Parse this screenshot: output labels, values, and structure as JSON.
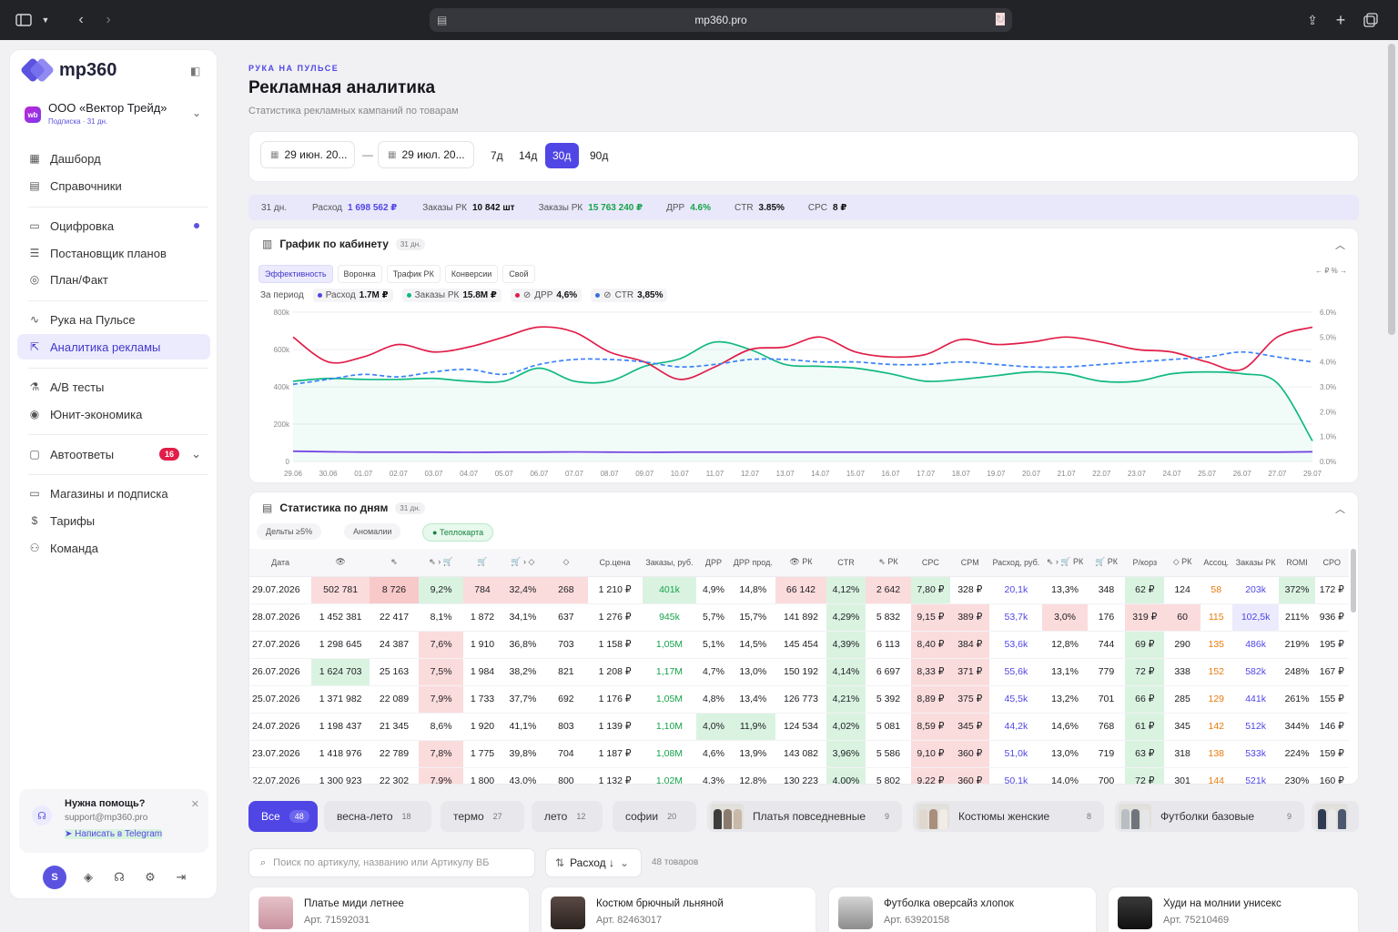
{
  "browser": {
    "url": "mp360.pro"
  },
  "sidebar": {
    "logo": "mp360",
    "org": {
      "name": "ООО «Вектор Трейд»",
      "sub": "Подписка · 31 дн.",
      "badge": "wb"
    },
    "items": [
      {
        "label": "Дашборд",
        "icon": "grid-icon"
      },
      {
        "label": "Справочники",
        "icon": "book-icon"
      },
      {
        "label": "Оцифровка",
        "icon": "folder-icon"
      },
      {
        "label": "Постановщик планов",
        "icon": "list-icon"
      },
      {
        "label": "План/Факт",
        "icon": "target-icon"
      },
      {
        "label": "Рука на Пульсе",
        "icon": "pulse-icon"
      },
      {
        "label": "Аналитика рекламы",
        "icon": "cursor-icon"
      },
      {
        "label": "A/B тесты",
        "icon": "flask-icon"
      },
      {
        "label": "Юнит-экономика",
        "icon": "coins-icon"
      },
      {
        "label": "Автоответы",
        "icon": "chat-icon",
        "badge": "16"
      },
      {
        "label": "Магазины и подписка",
        "icon": "card-icon"
      },
      {
        "label": "Тарифы",
        "icon": "dollar-icon"
      },
      {
        "label": "Команда",
        "icon": "team-icon"
      }
    ],
    "help": {
      "title": "Нужна помощь?",
      "email": "support@mp360.pro",
      "link": "Написать в Telegram"
    },
    "avatar": "S"
  },
  "header": {
    "eyebrow": "РУКА НА ПУЛЬСЕ",
    "title": "Рекламная аналитика",
    "subtitle": "Статистика рекламных кампаний по товарам"
  },
  "filters": {
    "date_from": "29 июн. 20...",
    "date_to": "29 июл. 20...",
    "dash": "—",
    "periods": [
      "7д",
      "14д",
      "30д",
      "90д"
    ],
    "active_period": "30д"
  },
  "kpi": {
    "days": "31 дн.",
    "spend_label": "Расход",
    "spend": "1 698 562 ₽",
    "orders_label": "Заказы РК",
    "orders": "10 842 шт",
    "orders_rub_label": "Заказы РК",
    "orders_rub": "15 763 240 ₽",
    "drr_label": "ДРР",
    "drr": "4.6%",
    "ctr_label": "CTR",
    "ctr": "3.85%",
    "cpc_label": "CPC",
    "cpc": "8 ₽"
  },
  "chart_section": {
    "title": "График по кабинету",
    "pill": "31 дн.",
    "tabs": [
      "Эффективность",
      "Воронка",
      "Трафик РК",
      "Конверсии",
      "Свой"
    ],
    "right_label": "← ₽  % →",
    "legend_prefix": "За период",
    "legend": [
      {
        "name": "Расход",
        "value": "1.7M ₽",
        "color": "#4f46e5"
      },
      {
        "name": "Заказы РК",
        "value": "15.8M ₽",
        "color": "#10b981"
      },
      {
        "name": "ДРР",
        "value": "4,6%",
        "color": "#e11d48"
      },
      {
        "name": "CTR",
        "value": "3,85%",
        "color": "#3b6fd8"
      }
    ]
  },
  "chart_data": {
    "type": "line",
    "x": [
      "29.06",
      "30.06",
      "01.07",
      "02.07",
      "03.07",
      "04.07",
      "05.07",
      "06.07",
      "07.07",
      "08.07",
      "09.07",
      "10.07",
      "11.07",
      "12.07",
      "13.07",
      "14.07",
      "15.07",
      "16.07",
      "17.07",
      "18.07",
      "19.07",
      "20.07",
      "21.07",
      "22.07",
      "23.07",
      "24.07",
      "25.07",
      "26.07",
      "27.07",
      "29.07"
    ],
    "y_left_ticks": [
      "0",
      "200k",
      "400k",
      "600k",
      "800k"
    ],
    "y_right_ticks": [
      "0.0%",
      "1.0%",
      "2.0%",
      "3.0%",
      "4.0%",
      "5.0%",
      "6.0%"
    ],
    "ylim_left": [
      0,
      800000
    ],
    "ylim_right": [
      0,
      6
    ],
    "series": [
      {
        "name": "Расход",
        "axis": "left",
        "color": "#6d3fe0",
        "values": [
          55000,
          52000,
          50000,
          50000,
          50000,
          49000,
          50000,
          50000,
          51000,
          50000,
          49000,
          50000,
          50000,
          50000,
          50000,
          50000,
          50000,
          50000,
          50000,
          50000,
          50000,
          50000,
          50000,
          50000,
          50000,
          50000,
          50000,
          50000,
          50000,
          52000
        ]
      },
      {
        "name": "Заказы РК",
        "axis": "left",
        "color": "#10b981",
        "values": [
          430000,
          445000,
          440000,
          440000,
          445000,
          430000,
          430000,
          500000,
          430000,
          430000,
          510000,
          550000,
          640000,
          600000,
          520000,
          510000,
          500000,
          470000,
          430000,
          440000,
          460000,
          480000,
          470000,
          430000,
          430000,
          470000,
          480000,
          470000,
          420000,
          110000
        ]
      },
      {
        "name": "ДРР",
        "axis": "right",
        "color": "#e11d48",
        "values": [
          5.0,
          4.0,
          4.2,
          4.7,
          4.4,
          4.6,
          5.0,
          5.4,
          5.2,
          4.4,
          4.0,
          3.3,
          3.8,
          4.5,
          4.6,
          5.0,
          4.4,
          4.2,
          4.3,
          4.9,
          4.7,
          4.8,
          5.0,
          4.8,
          4.5,
          4.4,
          4.0,
          3.7,
          5.0,
          5.4
        ]
      },
      {
        "name": "CTR",
        "axis": "right",
        "color": "#3b82f6",
        "values": [
          3.1,
          3.3,
          3.5,
          3.4,
          3.6,
          3.7,
          3.5,
          3.9,
          4.1,
          4.1,
          4.0,
          3.8,
          3.9,
          4.1,
          4.1,
          4.0,
          4.0,
          3.9,
          3.9,
          4.0,
          3.9,
          3.8,
          3.8,
          3.9,
          4.0,
          4.1,
          4.2,
          4.4,
          4.2,
          4.0
        ]
      }
    ]
  },
  "stats_section": {
    "title": "Статистика по дням",
    "pill": "31 дн.",
    "chips": [
      "Дельты ≥5%",
      "Аномалии",
      "Теплокарта"
    ],
    "columns": [
      "Дата",
      "👁",
      "⇖",
      "⇖ › 🛒",
      "🛒",
      "🛒 › ◇",
      "◇",
      "Ср.цена",
      "Заказы, руб.",
      "ДРР",
      "ДРР прод.",
      "👁 РК",
      "CTR",
      "⇖ РК",
      "CPC",
      "CPM",
      "Расход, руб.",
      "⇖ › 🛒 РК",
      "🛒 РК",
      "Р/корз",
      "◇ РК",
      "Ассоц.",
      "Заказы РК",
      "ROMI",
      "CPO"
    ],
    "rows": [
      [
        "29.07.2026",
        "502 781",
        "8 726",
        "9,2%",
        "784",
        "32,4%",
        "268",
        "1 210 ₽",
        "401k",
        "4,9%",
        "14,8%",
        "66 142",
        "4,12%",
        "2 642",
        "7,80 ₽",
        "328 ₽",
        "20,1k",
        "13,3%",
        "348",
        "62 ₽",
        "124",
        "58",
        "203k",
        "372%",
        "172 ₽"
      ],
      [
        "28.07.2026",
        "1 452 381",
        "22 417",
        "8,1%",
        "1 872",
        "34,1%",
        "637",
        "1 276 ₽",
        "945k",
        "5,7%",
        "15,7%",
        "141 892",
        "4,29%",
        "5 832",
        "9,15 ₽",
        "389 ₽",
        "53,7k",
        "3,0%",
        "176",
        "319 ₽",
        "60",
        "115",
        "102,5k",
        "211%",
        "936 ₽"
      ],
      [
        "27.07.2026",
        "1 298 645",
        "24 387",
        "7,6%",
        "1 910",
        "36,8%",
        "703",
        "1 158 ₽",
        "1,05M",
        "5,1%",
        "14,5%",
        "145 454",
        "4,39%",
        "6 113",
        "8,40 ₽",
        "384 ₽",
        "53,6k",
        "12,8%",
        "744",
        "69 ₽",
        "290",
        "135",
        "486k",
        "219%",
        "195 ₽"
      ],
      [
        "26.07.2026",
        "1 624 703",
        "25 163",
        "7,5%",
        "1 984",
        "38,2%",
        "821",
        "1 208 ₽",
        "1,17M",
        "4,7%",
        "13,0%",
        "150 192",
        "4,14%",
        "6 697",
        "8,33 ₽",
        "371 ₽",
        "55,6k",
        "13,1%",
        "779",
        "72 ₽",
        "338",
        "152",
        "582k",
        "248%",
        "167 ₽"
      ],
      [
        "25.07.2026",
        "1 371 982",
        "22 089",
        "7,9%",
        "1 733",
        "37,7%",
        "692",
        "1 176 ₽",
        "1,05M",
        "4,8%",
        "13,4%",
        "126 773",
        "4,21%",
        "5 392",
        "8,89 ₽",
        "375 ₽",
        "45,5k",
        "13,2%",
        "701",
        "66 ₽",
        "285",
        "129",
        "441k",
        "261%",
        "155 ₽"
      ],
      [
        "24.07.2026",
        "1 198 437",
        "21 345",
        "8,6%",
        "1 920",
        "41,1%",
        "803",
        "1 139 ₽",
        "1,10M",
        "4,0%",
        "11,9%",
        "124 534",
        "4,02%",
        "5 081",
        "8,59 ₽",
        "345 ₽",
        "44,2k",
        "14,6%",
        "768",
        "61 ₽",
        "345",
        "142",
        "512k",
        "344%",
        "146 ₽"
      ],
      [
        "23.07.2026",
        "1 418 976",
        "22 789",
        "7,8%",
        "1 775",
        "39,8%",
        "704",
        "1 187 ₽",
        "1,08M",
        "4,6%",
        "13,9%",
        "143 082",
        "3,96%",
        "5 586",
        "9,10 ₽",
        "360 ₽",
        "51,0k",
        "13,0%",
        "719",
        "63 ₽",
        "318",
        "138",
        "533k",
        "224%",
        "159 ₽"
      ],
      [
        "22.07.2026",
        "1 300 923",
        "22 302",
        "7,9%",
        "1 800",
        "43,0%",
        "800",
        "1 132 ₽",
        "1,02M",
        "4,3%",
        "12,8%",
        "130 223",
        "4,00%",
        "5 802",
        "9,22 ₽",
        "360 ₽",
        "50,1k",
        "14,0%",
        "700",
        "72 ₽",
        "301",
        "144",
        "521k",
        "230%",
        "160 ₽"
      ]
    ]
  },
  "categories": [
    {
      "label": "Все",
      "count": "48",
      "active": true
    },
    {
      "label": "весна-лето",
      "count": "18"
    },
    {
      "label": "термо",
      "count": "27"
    },
    {
      "label": "лето",
      "count": "12"
    },
    {
      "label": "софии",
      "count": "20"
    },
    {
      "label": "Платья повседневные",
      "count": "9"
    },
    {
      "label": "Костюмы женские",
      "count": "8"
    },
    {
      "label": "Футболки базовые",
      "count": "9"
    }
  ],
  "search": {
    "placeholder": "Поиск по артикулу, названию или Артикулу ВБ",
    "sort": "Расход ↓",
    "count": "48 товаров"
  },
  "products": [
    {
      "name": "Платье миди летнее",
      "art": "Арт. 71592031"
    },
    {
      "name": "Костюм брючный льняной",
      "art": "Арт. 82463017"
    },
    {
      "name": "Футболка оверсайз хлопок",
      "art": "Арт. 63920158"
    },
    {
      "name": "Худи на молнии унисекс",
      "art": "Арт. 75210469"
    }
  ],
  "colors": {
    "accent": "#4f46e5",
    "heat_red": "#fbdcdc",
    "heat_green": "#daf3e1"
  }
}
